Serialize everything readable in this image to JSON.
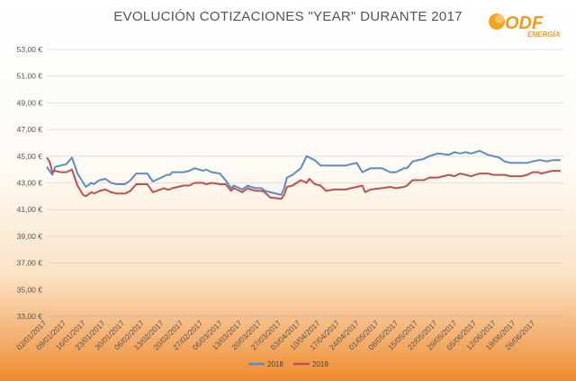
{
  "logo": {
    "name": "ODF",
    "subtitle": "ENERGÍA"
  },
  "chart_data": {
    "type": "line",
    "title": "EVOLUCIÓN COTIZACIONES \"YEAR\" DURANTE 2017",
    "xlabel": "",
    "ylabel": "",
    "ylim": [
      33,
      53
    ],
    "y_ticks": [
      33,
      35,
      37,
      39,
      41,
      43,
      45,
      47,
      49,
      51,
      53
    ],
    "y_tick_labels": [
      "33,00 €",
      "35,00 €",
      "37,00 €",
      "39,00 €",
      "41,00 €",
      "43,00 €",
      "45,00 €",
      "47,00 €",
      "49,00 €",
      "51,00 €",
      "53,00 €"
    ],
    "grid": true,
    "legend_position": "bottom",
    "x_tick_labels": [
      "02/01/2017",
      "09/01/2017",
      "16/01/2017",
      "23/01/2017",
      "30/01/2017",
      "06/02/2017",
      "13/02/2017",
      "20/02/2017",
      "27/02/2017",
      "06/03/2017",
      "13/03/2017",
      "20/03/2017",
      "27/03/2017",
      "03/04/2017",
      "10/04/2017",
      "17/04/2017",
      "24/04/2017",
      "01/05/2017",
      "08/05/2017",
      "15/05/2017",
      "22/05/2017",
      "29/05/2017",
      "05/06/2017",
      "12/06/2017",
      "19/06/2017",
      "26/06/2017"
    ],
    "days_span": 185,
    "series": [
      {
        "name": "2018",
        "color": "#5b8bc9",
        "x": [
          0,
          2,
          3,
          5,
          7,
          9,
          11,
          14,
          16,
          17,
          18,
          19,
          21,
          23,
          25,
          28,
          30,
          32,
          34,
          36,
          38,
          42,
          43,
          44,
          45,
          47,
          49,
          51,
          53,
          56,
          57,
          59,
          62,
          64,
          66,
          67,
          70,
          72,
          73,
          75,
          77,
          78,
          80,
          84,
          85,
          86,
          88,
          91,
          93,
          96,
          98,
          100,
          103,
          105,
          107,
          109,
          111,
          113,
          114,
          116,
          120,
          123,
          125,
          128,
          129,
          131,
          135,
          137,
          140,
          144,
          146,
          148,
          150,
          152,
          155,
          158,
          160,
          162,
          164,
          166,
          168,
          170,
          172,
          174,
          176,
          177,
          179,
          181,
          182,
          184
        ],
        "y": [
          44.2,
          43.6,
          44.2,
          44.3,
          44.4,
          44.9,
          43.7,
          42.7,
          43.0,
          42.9,
          43.1,
          43.2,
          43.3,
          43.0,
          42.9,
          42.9,
          43.2,
          43.7,
          43.7,
          43.7,
          43.1,
          43.5,
          43.6,
          43.6,
          43.8,
          43.8,
          43.8,
          43.9,
          44.1,
          43.9,
          44.0,
          43.8,
          43.7,
          43.2,
          42.6,
          42.8,
          42.5,
          42.8,
          42.7,
          42.6,
          42.6,
          42.4,
          42.3,
          42.1,
          42.6,
          43.4,
          43.6,
          44.1,
          45.0,
          44.7,
          44.3,
          44.3,
          44.3,
          44.3,
          44.3,
          44.4,
          44.5,
          43.8,
          43.9,
          44.1,
          44.1,
          43.8,
          43.8,
          44.1,
          44.1,
          44.6,
          44.8,
          45.0,
          45.2,
          45.1,
          45.3,
          45.2,
          45.3,
          45.2,
          45.4,
          45.1,
          45.0,
          44.9,
          44.6,
          44.5,
          44.5,
          44.5,
          44.5,
          44.6,
          44.7,
          44.7,
          44.6,
          44.7,
          44.7,
          44.7
        ]
      },
      {
        "name": "2019",
        "color": "#c0504d",
        "x": [
          0,
          1,
          2,
          3,
          5,
          7,
          9,
          11,
          13,
          14,
          16,
          17,
          18,
          19,
          21,
          23,
          25,
          28,
          30,
          32,
          34,
          36,
          38,
          42,
          43,
          44,
          45,
          47,
          49,
          51,
          53,
          56,
          57,
          59,
          62,
          64,
          66,
          67,
          70,
          72,
          73,
          75,
          77,
          78,
          80,
          84,
          85,
          86,
          88,
          91,
          93,
          94,
          96,
          98,
          100,
          103,
          105,
          107,
          109,
          111,
          113,
          114,
          116,
          120,
          123,
          125,
          128,
          129,
          131,
          135,
          137,
          140,
          144,
          146,
          148,
          150,
          152,
          155,
          158,
          160,
          162,
          164,
          166,
          168,
          170,
          172,
          174,
          176,
          177,
          179,
          181,
          182,
          184
        ],
        "y": [
          44.9,
          44.6,
          43.8,
          43.9,
          43.8,
          43.8,
          44.0,
          42.8,
          42.1,
          42.0,
          42.3,
          42.2,
          42.3,
          42.4,
          42.5,
          42.3,
          42.2,
          42.2,
          42.4,
          42.9,
          42.9,
          42.9,
          42.3,
          42.6,
          42.5,
          42.5,
          42.6,
          42.7,
          42.8,
          42.8,
          43.0,
          43.0,
          42.9,
          43.0,
          42.9,
          42.9,
          42.4,
          42.6,
          42.3,
          42.6,
          42.5,
          42.4,
          42.4,
          42.3,
          41.9,
          41.8,
          42.1,
          42.7,
          42.8,
          43.2,
          43.0,
          43.3,
          42.9,
          42.8,
          42.4,
          42.5,
          42.5,
          42.5,
          42.6,
          42.7,
          42.8,
          42.3,
          42.5,
          42.6,
          42.7,
          42.6,
          42.7,
          42.8,
          43.2,
          43.2,
          43.4,
          43.4,
          43.6,
          43.5,
          43.7,
          43.6,
          43.5,
          43.7,
          43.7,
          43.6,
          43.6,
          43.6,
          43.5,
          43.5,
          43.5,
          43.6,
          43.8,
          43.8,
          43.7,
          43.8,
          43.9,
          43.9,
          43.9
        ]
      }
    ]
  }
}
